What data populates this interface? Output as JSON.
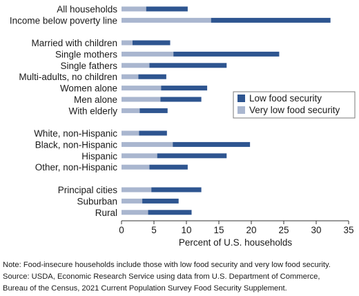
{
  "chart_data": {
    "type": "bar",
    "orientation": "horizontal",
    "stacked": true,
    "categories": [
      "All households",
      "Income below poverty line",
      "Married with children",
      "Single mothers",
      "Single fathers",
      "Multi-adults, no children",
      "Women alone",
      "Men alone",
      "With elderly",
      "White, non-Hispanic",
      "Black, non-Hispanic",
      "Hispanic",
      "Other, non-Hispanic",
      "Principal cities",
      "Suburban",
      "Rural"
    ],
    "series": [
      {
        "name": "Very low food security",
        "color": "#a9b6cf",
        "values": [
          3.8,
          13.8,
          1.7,
          8.0,
          4.3,
          2.6,
          6.1,
          6.0,
          2.8,
          2.7,
          7.9,
          5.5,
          4.3,
          4.6,
          3.2,
          4.1
        ]
      },
      {
        "name": "Low food security",
        "color": "#2e5590",
        "values": [
          6.4,
          18.4,
          5.8,
          16.3,
          11.9,
          4.3,
          7.1,
          6.3,
          4.3,
          4.3,
          11.9,
          10.7,
          5.9,
          7.7,
          5.6,
          6.7
        ]
      }
    ],
    "xlabel": "Percent of U.S. households",
    "xlim": [
      0,
      35
    ],
    "xticks": [
      0,
      5,
      10,
      15,
      20,
      25,
      30,
      35
    ],
    "legend": {
      "position": "right",
      "order": [
        "Low food security",
        "Very low food security"
      ]
    },
    "grid": false,
    "notes": [
      "Note: Food-insecure households include those with low food security and very low food security.",
      "Source: USDA, Economic Research Service using data from U.S. Department of Commerce,",
      "Bureau of the Census, 2021 Current Population Survey Food Security Supplement."
    ]
  }
}
